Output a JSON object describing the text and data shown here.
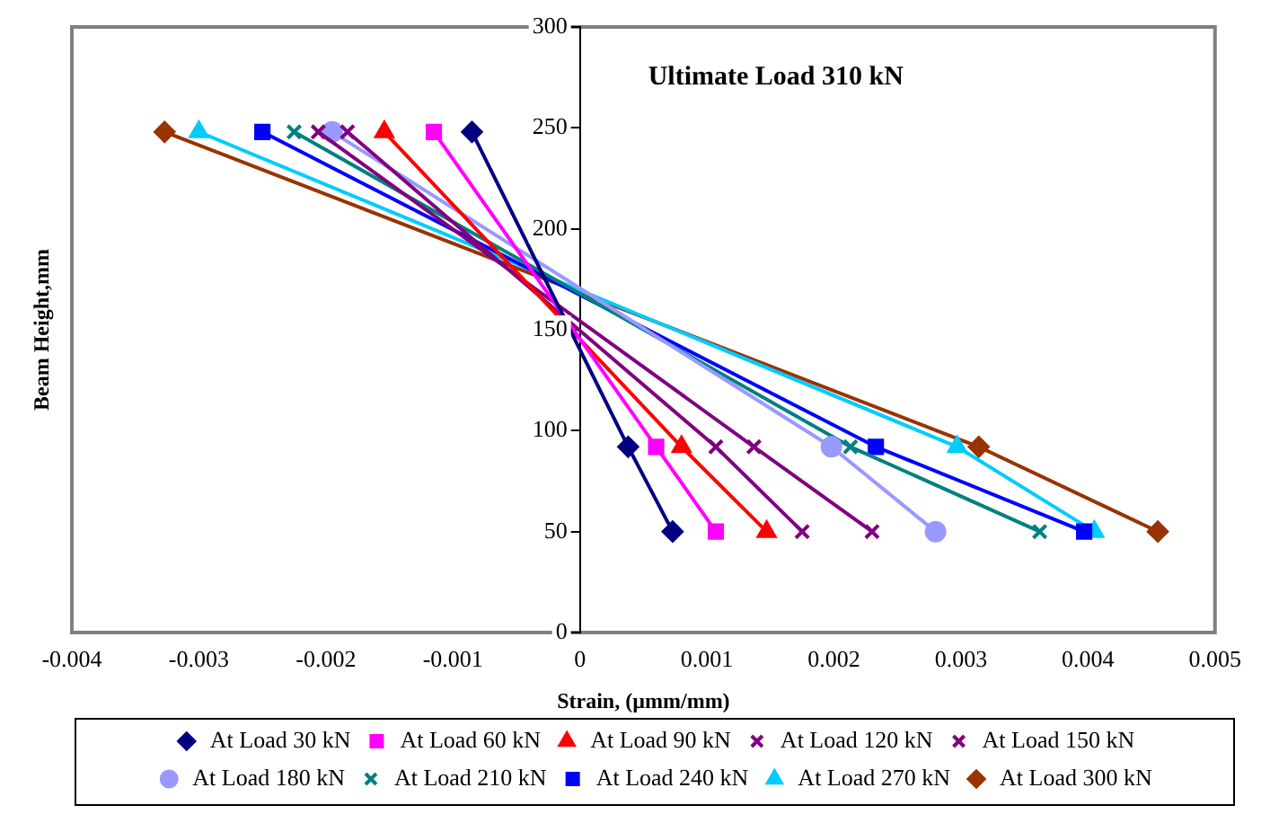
{
  "chart_data": {
    "type": "line",
    "title": "Ultimate Load 310 kN",
    "xlabel": "Strain, (µmm/mm)",
    "ylabel": "Beam Height,mm",
    "xlim": [
      -0.004,
      0.005
    ],
    "xticks": [
      -0.004,
      -0.003,
      -0.002,
      -0.001,
      0,
      0.001,
      0.002,
      0.003,
      0.004,
      0.005
    ],
    "ylim": [
      0,
      300
    ],
    "yticks": [
      0,
      50,
      100,
      150,
      200,
      250,
      300
    ],
    "legend": "bottom",
    "series": [
      {
        "name": "At Load 30 kN",
        "color": "#000080",
        "marker": "diamond",
        "x": [
          -0.00085,
          0.00038,
          0.00073
        ],
        "values": [
          248,
          92,
          50
        ]
      },
      {
        "name": "At Load 60 kN",
        "color": "#ff00ff",
        "marker": "square",
        "x": [
          -0.00115,
          0.0006,
          0.00107
        ],
        "values": [
          248,
          92,
          50
        ]
      },
      {
        "name": "At Load 90 kN",
        "color": "#ff0000",
        "marker": "triangle",
        "x": [
          -0.00154,
          0.0008,
          0.00147
        ],
        "values": [
          248,
          92,
          50
        ]
      },
      {
        "name": "At Load 120 kN",
        "color": "#800080",
        "marker": "cross",
        "x": [
          -0.00183,
          0.00107,
          0.00175
        ],
        "values": [
          248,
          92,
          50
        ]
      },
      {
        "name": "At Load 150 kN",
        "color": "#800080",
        "marker": "cross",
        "x": [
          -0.00206,
          0.00137,
          0.0023
        ],
        "values": [
          248,
          92,
          50
        ]
      },
      {
        "name": "At Load 180 kN",
        "color": "#9999ff",
        "marker": "circle",
        "x": [
          -0.00195,
          0.00198,
          0.0028
        ],
        "values": [
          248,
          92,
          50
        ]
      },
      {
        "name": "At Load 210 kN",
        "color": "#008080",
        "marker": "cross",
        "x": [
          -0.00225,
          0.00213,
          0.00362
        ],
        "values": [
          248,
          92,
          50
        ]
      },
      {
        "name": "At Load 240 kN",
        "color": "#0000ff",
        "marker": "square",
        "x": [
          -0.0025,
          0.00233,
          0.00397
        ],
        "values": [
          248,
          92,
          50
        ]
      },
      {
        "name": "At Load 270 kN",
        "color": "#00ccff",
        "marker": "triangle",
        "x": [
          -0.003,
          0.00297,
          0.00405
        ],
        "values": [
          248,
          92,
          50
        ]
      },
      {
        "name": "At Load 300 kN",
        "color": "#993300",
        "marker": "diamond",
        "x": [
          -0.00327,
          0.00314,
          0.00455
        ],
        "values": [
          248,
          92,
          50
        ]
      }
    ]
  }
}
